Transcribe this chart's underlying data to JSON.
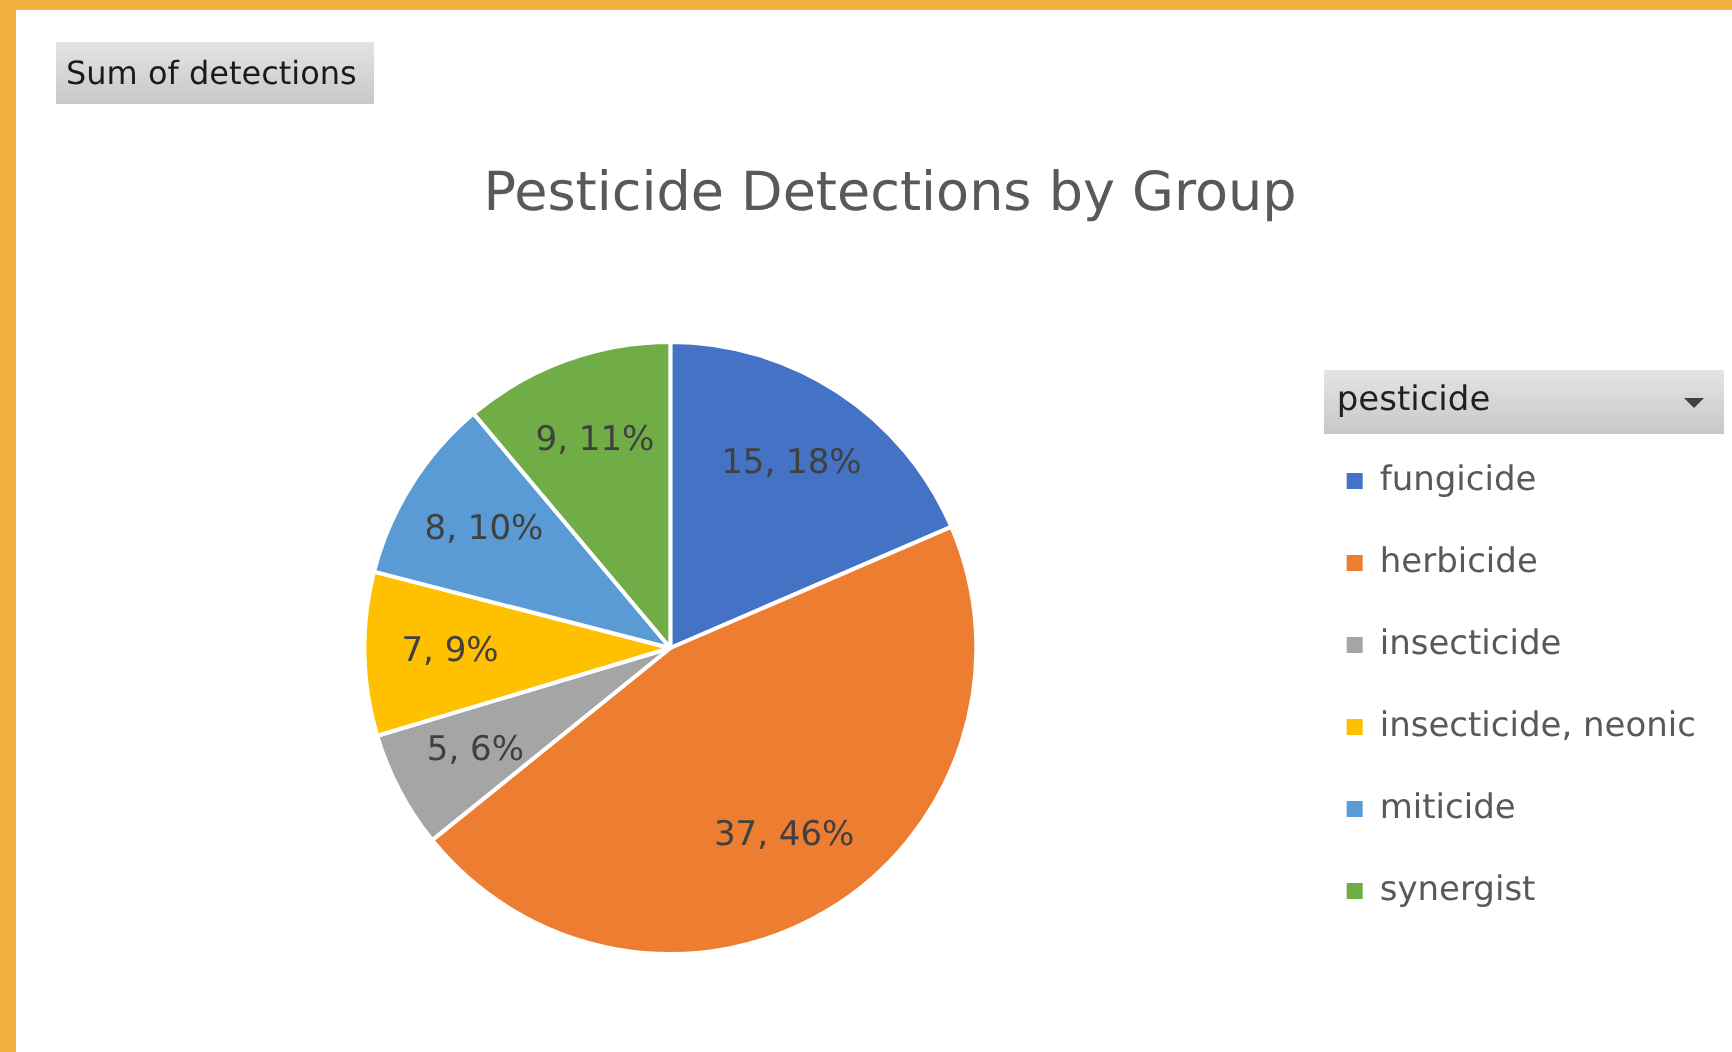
{
  "chart_data": {
    "type": "pie",
    "title": "Pesticide Detections by Group",
    "categories": [
      "fungicide",
      "herbicide",
      "insecticide",
      "insecticide, neonic",
      "miticide",
      "synergist"
    ],
    "values": [
      15,
      37,
      5,
      7,
      8,
      9
    ],
    "colors": [
      "#4472c4",
      "#ed7d31",
      "#a5a5a5",
      "#ffc000",
      "#5b9bd5",
      "#70ad47"
    ],
    "value_labels": [
      "15, 18%",
      "37, 46%",
      "5, 6%",
      "7, 9%",
      "8, 10%",
      "9, 11%"
    ],
    "legend": "right",
    "legend_title": "pesticide",
    "annotations": [
      "Sum of detections"
    ]
  }
}
